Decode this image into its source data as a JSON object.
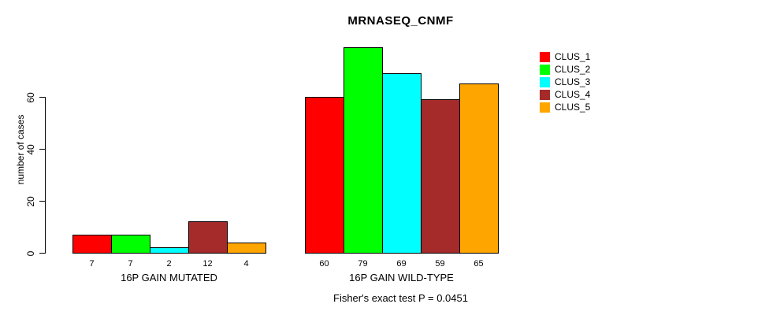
{
  "title": "MRNASEQ_CNMF",
  "y_axis_label": "number of cases",
  "annotation": "Fisher's exact test P = 0.0451",
  "chart_data": {
    "type": "bar",
    "title": "MRNASEQ_CNMF",
    "xlabel": "",
    "ylabel": "number of cases",
    "ylim": [
      0,
      60
    ],
    "yticks": [
      0,
      20,
      40,
      60
    ],
    "grid": false,
    "legend_position": "right",
    "bar_value_labels": true,
    "categories": [
      "16P GAIN MUTATED",
      "16P GAIN WILD-TYPE"
    ],
    "groups": [
      {
        "label": "16P GAIN MUTATED",
        "values": [
          7,
          7,
          2,
          12,
          4
        ]
      },
      {
        "label": "16P GAIN WILD-TYPE",
        "values": [
          60,
          79,
          69,
          59,
          65
        ]
      }
    ],
    "series": [
      {
        "name": "CLUS_1",
        "color": "#FF0000",
        "values": [
          7,
          60
        ]
      },
      {
        "name": "CLUS_2",
        "color": "#00FF00",
        "values": [
          7,
          79
        ]
      },
      {
        "name": "CLUS_3",
        "color": "#00FFFF",
        "values": [
          2,
          69
        ]
      },
      {
        "name": "CLUS_4",
        "color": "#A52A2A",
        "values": [
          12,
          59
        ]
      },
      {
        "name": "CLUS_5",
        "color": "#FFA500",
        "values": [
          4,
          65
        ]
      }
    ],
    "annotation": "Fisher's exact test P = 0.0451"
  }
}
